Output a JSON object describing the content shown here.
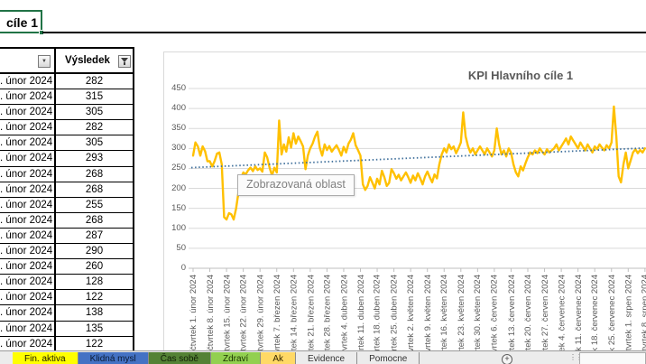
{
  "active_cell": {
    "text": "cíle 1"
  },
  "table": {
    "columns": [
      {
        "header": ""
      },
      {
        "header": "Výsledek"
      }
    ],
    "rows": [
      {
        "date": ". únor 2024",
        "value": "282"
      },
      {
        "date": ". únor 2024",
        "value": "315"
      },
      {
        "date": ". únor 2024",
        "value": "305"
      },
      {
        "date": ". únor 2024",
        "value": "282"
      },
      {
        "date": ". únor 2024",
        "value": "305"
      },
      {
        "date": ". únor 2024",
        "value": "293"
      },
      {
        "date": ". únor 2024",
        "value": "268"
      },
      {
        "date": ". únor 2024",
        "value": "268"
      },
      {
        "date": ". únor 2024",
        "value": "255"
      },
      {
        "date": ". únor 2024",
        "value": "268"
      },
      {
        "date": ". únor 2024",
        "value": "287"
      },
      {
        "date": ". únor 2024",
        "value": "290"
      },
      {
        "date": ". únor 2024",
        "value": "260"
      },
      {
        "date": ". únor 2024",
        "value": "128"
      },
      {
        "date": ". únor 2024",
        "value": "122"
      },
      {
        "date": ". únor 2024",
        "value": "138"
      },
      {
        "date": ". únor 2024",
        "value": "135"
      },
      {
        "date": ". únor 2024",
        "value": "122"
      }
    ]
  },
  "tooltip": {
    "text": "Zobrazovaná oblast"
  },
  "chart_data": {
    "type": "line",
    "title": "KPI Hlavního cíle 1",
    "series_color": "#FFC000",
    "grid_color": "#D9D9D9",
    "axis_color": "#BFBFBF",
    "label_color": "#595959",
    "ylim": [
      0,
      450
    ],
    "y_ticks": [
      450,
      400,
      350,
      300,
      250,
      200,
      150,
      100,
      50,
      0
    ],
    "legend": "none",
    "trendline": {
      "style": "dotted",
      "color": "#41719C",
      "start_value": 252,
      "end_value": 301
    },
    "x_tick_labels": [
      "čtvrtek 1. únor 2024",
      "čtvrtek 8. únor 2024",
      "čtvrtek 15. únor 2024",
      "čtvrtek 22. únor 2024",
      "čtvrtek 29. únor 2024",
      "čtvrtek 7. březen 2024",
      "čtvrtek 14. březen 2024",
      "čtvrtek 21. březen 2024",
      "čtvrtek 28. březen 2024",
      "čtvrtek 4. duben 2024",
      "čtvrtek 11. duben 2024",
      "čtvrtek 18. duben 2024",
      "čtvrtek 25. duben 2024",
      "čtvrtek 2. květen 2024",
      "čtvrtek 9. květen 2024",
      "čtvrtek 16. květen 2024",
      "čtvrtek 23. květen 2024",
      "čtvrtek 30. květen 2024",
      "čtvrtek 6. červen 2024",
      "čtvrtek 13. červen 2024",
      "čtvrtek 20. červen 2024",
      "čtvrtek 27. červen 2024",
      "čtvrtek 4. červenec 2024",
      "čtvrtek 11. červenec 2024",
      "čtvrtek 18. červenec 2024",
      "čtvrtek 25. červenec 2024",
      "čtvrtek 1. srpen 2024",
      "čtvrtek 8. srpen 2024"
    ],
    "values": [
      282,
      315,
      305,
      282,
      305,
      293,
      268,
      268,
      255,
      268,
      287,
      290,
      260,
      128,
      122,
      138,
      135,
      122,
      150,
      190,
      225,
      240,
      235,
      245,
      252,
      243,
      255,
      246,
      250,
      242,
      290,
      278,
      252,
      232,
      252,
      240,
      370,
      285,
      310,
      292,
      328,
      302,
      338,
      312,
      330,
      318,
      305,
      248,
      282,
      300,
      312,
      330,
      342,
      302,
      282,
      310,
      296,
      306,
      292,
      300,
      308,
      296,
      282,
      304,
      290,
      312,
      322,
      338,
      308,
      296,
      282,
      210,
      196,
      206,
      228,
      214,
      200,
      224,
      210,
      244,
      228,
      206,
      214,
      248,
      238,
      224,
      234,
      220,
      230,
      240,
      228,
      214,
      232,
      220,
      238,
      225,
      210,
      230,
      242,
      228,
      215,
      235,
      225,
      260,
      285,
      300,
      290,
      310,
      298,
      305,
      288,
      300,
      315,
      390,
      330,
      305,
      290,
      300,
      285,
      295,
      305,
      295,
      285,
      300,
      290,
      280,
      295,
      350,
      310,
      285,
      295,
      280,
      300,
      290,
      260,
      240,
      230,
      255,
      245,
      262,
      278,
      290,
      285,
      295,
      288,
      300,
      292,
      285,
      298,
      290,
      295,
      300,
      310,
      295,
      305,
      315,
      325,
      310,
      330,
      320,
      310,
      300,
      315,
      305,
      295,
      310,
      300,
      290,
      305,
      298,
      310,
      302,
      295,
      308,
      300,
      315,
      405,
      330,
      230,
      215,
      260,
      290,
      250,
      270,
      290,
      298,
      288,
      296,
      290,
      300
    ]
  },
  "sheet_tabs": {
    "tabs": [
      {
        "label": "Fin. aktiva",
        "color": "#FFFF00",
        "text_color": "#1a1a00"
      },
      {
        "label": "Klidná mysl",
        "color": "#4472C4",
        "text_color": "#0a1a33"
      },
      {
        "label": "Čas sobě",
        "color": "#548235",
        "text_color": "#101f06"
      },
      {
        "label": "Zdraví",
        "color": "#92D050",
        "text_color": "#1a3300"
      },
      {
        "label": "Ak",
        "color": "#FFD966",
        "text_color": "#332600"
      },
      {
        "label": "Evidence",
        "color": "#ececec",
        "text_color": "#333333"
      },
      {
        "label": "Pomocne",
        "color": "#ececec",
        "text_color": "#333333"
      }
    ],
    "add_label": "+"
  }
}
